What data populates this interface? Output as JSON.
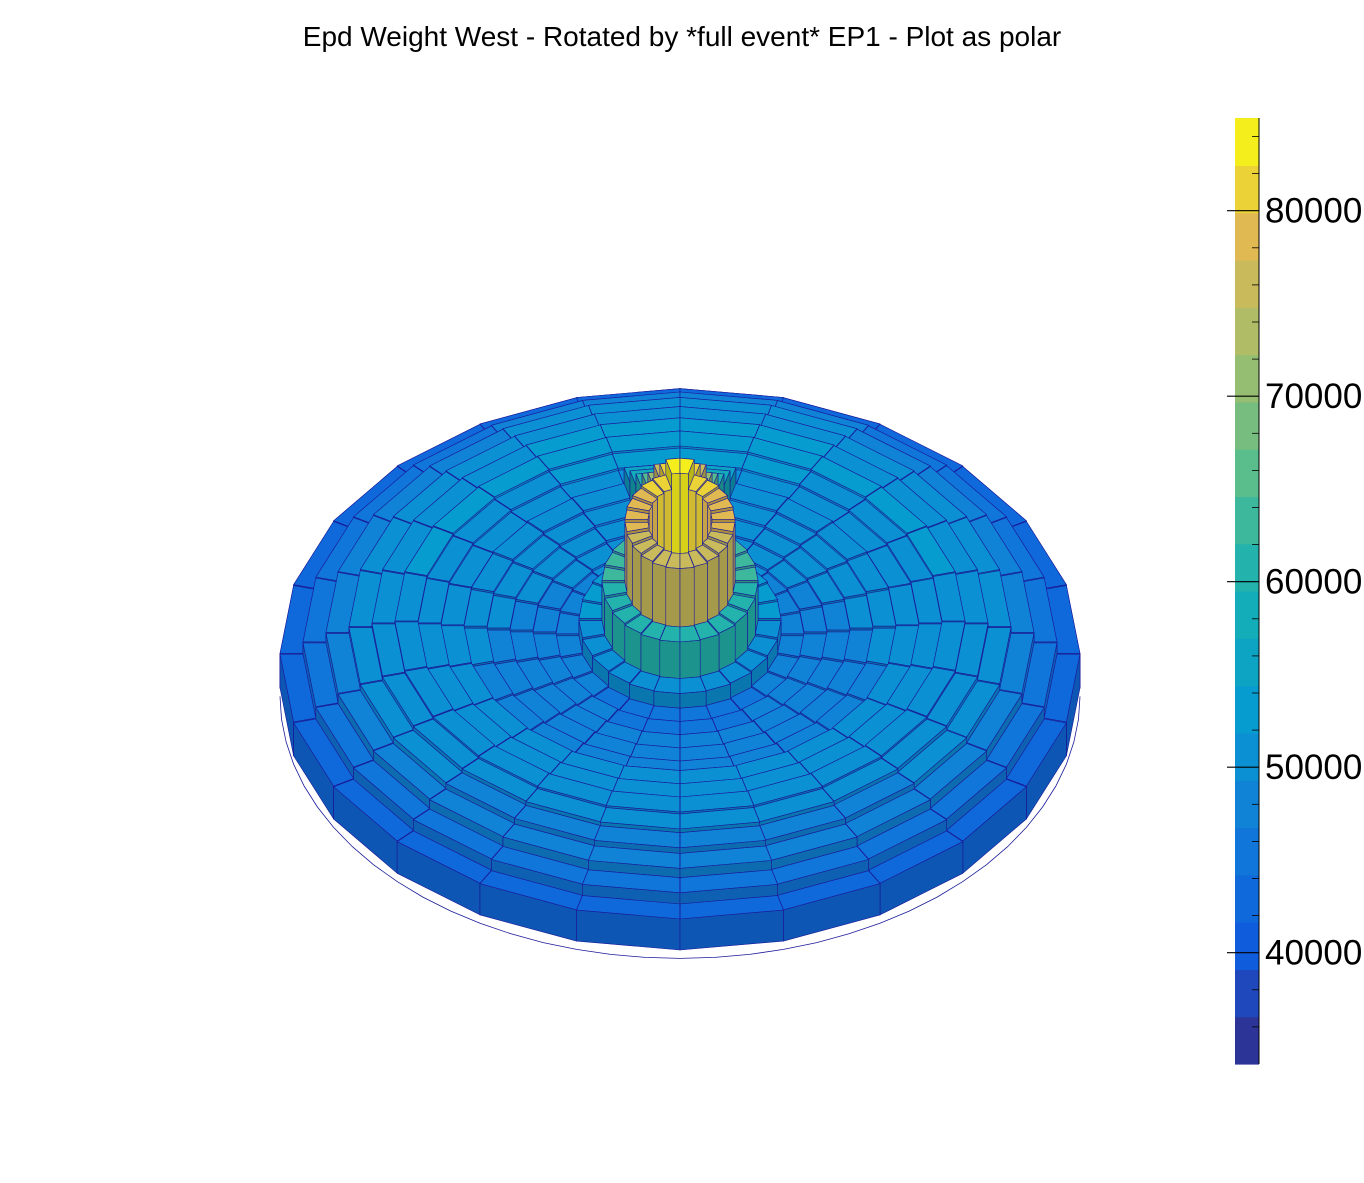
{
  "chart_data": {
    "type": "heatmap",
    "projection": "polar-lego-3d",
    "title": "Epd Weight West - Rotated by *full event* EP1 - Plot as polar",
    "rings": 16,
    "sectors": 24,
    "r_range": [
      0.08,
      1.0
    ],
    "ring_values": [
      78000,
      62000,
      52000,
      48000,
      48500,
      49000,
      49500,
      50000,
      50500,
      51000,
      51500,
      51000,
      50000,
      48500,
      46000,
      43000
    ],
    "ep_phi_deg": 90,
    "peak_values": [
      85000,
      80000,
      76000,
      70000,
      66000,
      62000,
      59000,
      56000
    ],
    "modulation": 0.04,
    "z_range": [
      34000,
      85000
    ],
    "palette": "kBird",
    "colorbar": {
      "min": 34000,
      "max": 85000,
      "ticks": [
        40000,
        50000,
        60000,
        70000,
        80000
      ],
      "tick_labels": [
        "40000",
        "50000",
        "60000",
        "70000",
        "80000"
      ],
      "levels": 20,
      "position": "right"
    }
  }
}
